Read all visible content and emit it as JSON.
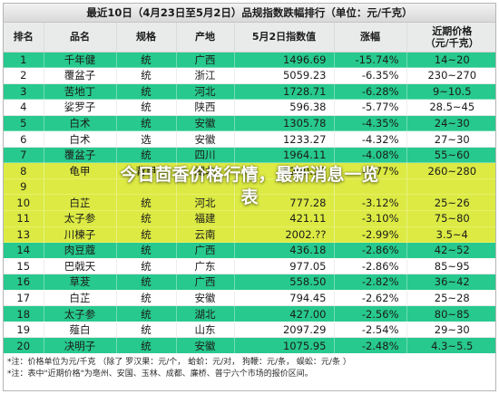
{
  "title": "最近10日（4月23日至5月2日）品规指数跌幅排行（单位：元/千克）",
  "headers": [
    "排名",
    "品名",
    "规格",
    "产地",
    "5月2日指数值",
    "涨幅",
    "近期价格\n（元/千克）"
  ],
  "rows": [
    {
      "rank": "1",
      "name": "千年健",
      "spec": "统",
      "origin": "广西",
      "value": "1496.69",
      "change": "-15.74%",
      "price": "14~20",
      "tone": "green"
    },
    {
      "rank": "2",
      "name": "覆盆子",
      "spec": "统",
      "origin": "浙江",
      "value": "5059.23",
      "change": "-6.35%",
      "price": "230~270",
      "tone": "white"
    },
    {
      "rank": "3",
      "name": "苦地丁",
      "spec": "统",
      "origin": "河北",
      "value": "1728.71",
      "change": "-6.28%",
      "price": "9~10.5",
      "tone": "green"
    },
    {
      "rank": "4",
      "name": "娑罗子",
      "spec": "统",
      "origin": "陕西",
      "value": "596.38",
      "change": "-5.77%",
      "price": "28.5~45",
      "tone": "white"
    },
    {
      "rank": "5",
      "name": "白术",
      "spec": "统",
      "origin": "安徽",
      "value": "1305.78",
      "change": "-4.35%",
      "price": "24~30",
      "tone": "green"
    },
    {
      "rank": "6",
      "name": "白术",
      "spec": "选",
      "origin": "安徽",
      "value": "1233.27",
      "change": "-4.32%",
      "price": "27~30",
      "tone": "white"
    },
    {
      "rank": "7",
      "name": "覆盆子",
      "spec": "统",
      "origin": "四川",
      "value": "1964.11",
      "change": "-4.08%",
      "price": "55~60",
      "tone": "green"
    },
    {
      "rank": "8",
      "name": "龟甲",
      "spec": "背甲",
      "origin": "湖北",
      "value": "5200.72",
      "change": "-3.77%",
      "price": "260~280",
      "tone": "yellow"
    },
    {
      "rank": "9",
      "name": "",
      "spec": "",
      "origin": "",
      "value": "",
      "change": "",
      "price": "",
      "tone": "yellow"
    },
    {
      "rank": "10",
      "name": "白芷",
      "spec": "统",
      "origin": "河北",
      "value": "777.28",
      "change": "-3.12%",
      "price": "25~26",
      "tone": "yellow"
    },
    {
      "rank": "11",
      "name": "太子参",
      "spec": "统",
      "origin": "福建",
      "value": "421.11",
      "change": "-3.10%",
      "price": "75~80",
      "tone": "yellow"
    },
    {
      "rank": "13",
      "name": "川楝子",
      "spec": "统",
      "origin": "云南",
      "value": "2002.??",
      "change": "-2.99%",
      "price": "3.5~4",
      "tone": "yellow"
    },
    {
      "rank": "14",
      "name": "肉豆蔻",
      "spec": "统",
      "origin": "广西",
      "value": "436.18",
      "change": "-2.86%",
      "price": "42~52",
      "tone": "green"
    },
    {
      "rank": "15",
      "name": "巴戟天",
      "spec": "统",
      "origin": "广东",
      "value": "977.05",
      "change": "-2.86%",
      "price": "85~95",
      "tone": "white"
    },
    {
      "rank": "16",
      "name": "草茇",
      "spec": "统",
      "origin": "广西",
      "value": "558.50",
      "change": "-2.82%",
      "price": "36~42",
      "tone": "green"
    },
    {
      "rank": "17",
      "name": "白芷",
      "spec": "统",
      "origin": "安徽",
      "value": "794.45",
      "change": "-2.62%",
      "price": "25~28",
      "tone": "white"
    },
    {
      "rank": "18",
      "name": "太子参",
      "spec": "统",
      "origin": "湖北",
      "value": "427.00",
      "change": "-2.56%",
      "price": "80~85",
      "tone": "green"
    },
    {
      "rank": "19",
      "name": "薤白",
      "spec": "统",
      "origin": "山东",
      "value": "2097.29",
      "change": "-2.54%",
      "price": "29~30",
      "tone": "white"
    },
    {
      "rank": "20",
      "name": "决明子",
      "spec": "统",
      "origin": "安徽",
      "value": "1075.95",
      "change": "-2.48%",
      "price": "4.3~5.5",
      "tone": "green"
    }
  ],
  "notes": [
    "*注：价格单位为元/千克 （除了 罗汉果：元/个， 蛤蚧：元/对， 狗鞭：元/条， 蜈蚣：元/条 ）",
    "*注：表中\"近期价格\"为亳州、安国、玉林、成都、廉桥、普宁六个市场的报价区间。"
  ],
  "overlay_line1": "今日茴香价格行情，最新消息一览",
  "overlay_line2": "表",
  "colors": {
    "green": "#27c98e",
    "yellow": "#dcea43",
    "header": "#e9ebea"
  }
}
